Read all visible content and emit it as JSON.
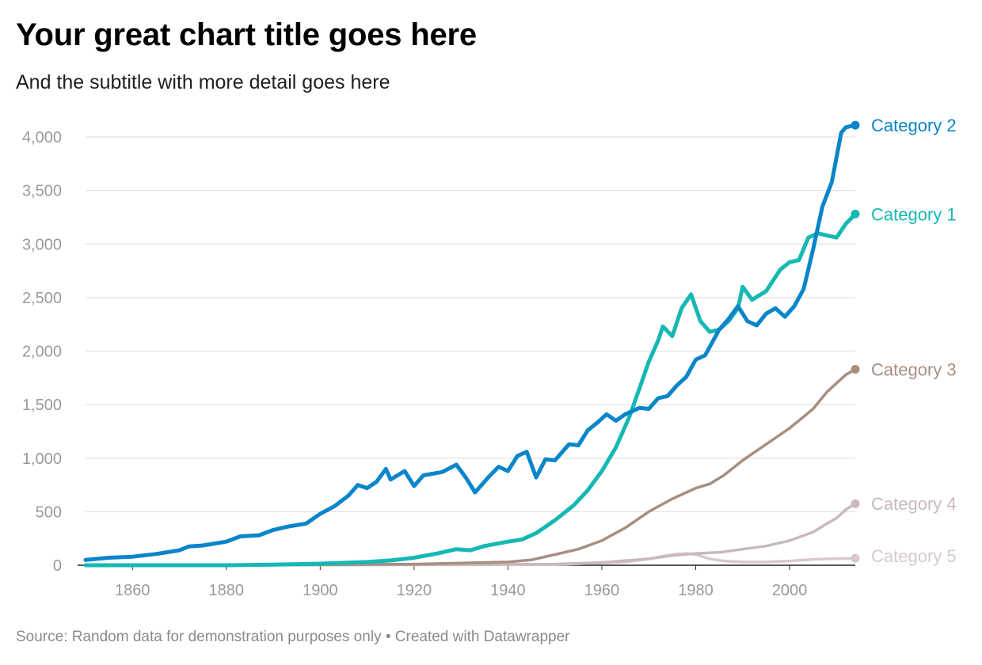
{
  "header": {
    "title": "Your great chart title goes here",
    "subtitle": "And the subtitle with more detail goes here"
  },
  "footer": {
    "source": "Source: Random data for demonstration purposes only",
    "separator": "•",
    "credit": "Created with Datawrapper"
  },
  "chart_data": {
    "type": "line",
    "title": "Your great chart title goes here",
    "subtitle": "And the subtitle with more detail goes here",
    "xlabel": "",
    "ylabel": "",
    "xlim": [
      1850,
      2014
    ],
    "ylim": [
      0,
      4000
    ],
    "x_ticks": [
      1860,
      1880,
      1900,
      1920,
      1940,
      1960,
      1980,
      2000
    ],
    "x_tick_labels": [
      "1860",
      "1880",
      "1900",
      "1920",
      "1940",
      "1960",
      "1980",
      "2000"
    ],
    "y_ticks": [
      0,
      500,
      1000,
      1500,
      2000,
      2500,
      3000,
      3500,
      4000
    ],
    "y_tick_labels": [
      "0",
      "500",
      "1,000",
      "1,500",
      "2,000",
      "2,500",
      "3,000",
      "3,500",
      "4,000"
    ],
    "grid": true,
    "legend": "direct labels at line ends (right)",
    "series": [
      {
        "name": "Category 2",
        "color": "#0a85c9",
        "points": [
          [
            1850,
            50
          ],
          [
            1855,
            70
          ],
          [
            1860,
            80
          ],
          [
            1865,
            105
          ],
          [
            1870,
            140
          ],
          [
            1872,
            175
          ],
          [
            1875,
            185
          ],
          [
            1880,
            220
          ],
          [
            1883,
            270
          ],
          [
            1887,
            280
          ],
          [
            1890,
            330
          ],
          [
            1893,
            360
          ],
          [
            1897,
            390
          ],
          [
            1900,
            480
          ],
          [
            1903,
            550
          ],
          [
            1906,
            650
          ],
          [
            1908,
            750
          ],
          [
            1910,
            720
          ],
          [
            1912,
            780
          ],
          [
            1914,
            900
          ],
          [
            1915,
            800
          ],
          [
            1918,
            880
          ],
          [
            1920,
            740
          ],
          [
            1922,
            840
          ],
          [
            1926,
            870
          ],
          [
            1929,
            940
          ],
          [
            1931,
            820
          ],
          [
            1933,
            680
          ],
          [
            1936,
            830
          ],
          [
            1938,
            920
          ],
          [
            1940,
            880
          ],
          [
            1942,
            1020
          ],
          [
            1944,
            1060
          ],
          [
            1946,
            820
          ],
          [
            1948,
            990
          ],
          [
            1950,
            980
          ],
          [
            1953,
            1130
          ],
          [
            1955,
            1120
          ],
          [
            1957,
            1260
          ],
          [
            1959,
            1330
          ],
          [
            1961,
            1410
          ],
          [
            1963,
            1350
          ],
          [
            1965,
            1410
          ],
          [
            1968,
            1470
          ],
          [
            1970,
            1460
          ],
          [
            1972,
            1560
          ],
          [
            1974,
            1580
          ],
          [
            1976,
            1680
          ],
          [
            1978,
            1760
          ],
          [
            1980,
            1920
          ],
          [
            1982,
            1960
          ],
          [
            1985,
            2200
          ],
          [
            1987,
            2300
          ],
          [
            1989,
            2420
          ],
          [
            1991,
            2280
          ],
          [
            1993,
            2240
          ],
          [
            1995,
            2350
          ],
          [
            1997,
            2400
          ],
          [
            1999,
            2320
          ],
          [
            2001,
            2420
          ],
          [
            2003,
            2580
          ],
          [
            2005,
            2950
          ],
          [
            2007,
            3350
          ],
          [
            2009,
            3580
          ],
          [
            2011,
            4040
          ],
          [
            2012,
            4090
          ],
          [
            2014,
            4110
          ]
        ]
      },
      {
        "name": "Category 1",
        "color": "#15b8b3",
        "points": [
          [
            1850,
            0
          ],
          [
            1880,
            0
          ],
          [
            1890,
            5
          ],
          [
            1900,
            15
          ],
          [
            1910,
            30
          ],
          [
            1915,
            45
          ],
          [
            1920,
            70
          ],
          [
            1925,
            110
          ],
          [
            1929,
            150
          ],
          [
            1932,
            140
          ],
          [
            1935,
            180
          ],
          [
            1940,
            220
          ],
          [
            1943,
            240
          ],
          [
            1946,
            300
          ],
          [
            1950,
            420
          ],
          [
            1954,
            560
          ],
          [
            1957,
            700
          ],
          [
            1960,
            880
          ],
          [
            1963,
            1100
          ],
          [
            1966,
            1400
          ],
          [
            1968,
            1650
          ],
          [
            1970,
            1900
          ],
          [
            1972,
            2100
          ],
          [
            1973,
            2230
          ],
          [
            1975,
            2140
          ],
          [
            1977,
            2400
          ],
          [
            1979,
            2530
          ],
          [
            1981,
            2280
          ],
          [
            1983,
            2180
          ],
          [
            1985,
            2200
          ],
          [
            1987,
            2280
          ],
          [
            1989,
            2400
          ],
          [
            1990,
            2600
          ],
          [
            1992,
            2480
          ],
          [
            1995,
            2560
          ],
          [
            1998,
            2760
          ],
          [
            2000,
            2830
          ],
          [
            2002,
            2850
          ],
          [
            2004,
            3060
          ],
          [
            2006,
            3100
          ],
          [
            2008,
            3080
          ],
          [
            2010,
            3060
          ],
          [
            2012,
            3190
          ],
          [
            2014,
            3280
          ]
        ]
      },
      {
        "name": "Category 3",
        "color": "#a88e82",
        "points": [
          [
            1850,
            0
          ],
          [
            1900,
            5
          ],
          [
            1920,
            10
          ],
          [
            1930,
            20
          ],
          [
            1940,
            30
          ],
          [
            1945,
            50
          ],
          [
            1950,
            100
          ],
          [
            1955,
            150
          ],
          [
            1960,
            230
          ],
          [
            1965,
            350
          ],
          [
            1970,
            500
          ],
          [
            1975,
            620
          ],
          [
            1980,
            720
          ],
          [
            1983,
            760
          ],
          [
            1986,
            840
          ],
          [
            1990,
            980
          ],
          [
            1995,
            1130
          ],
          [
            2000,
            1280
          ],
          [
            2005,
            1460
          ],
          [
            2008,
            1620
          ],
          [
            2010,
            1700
          ],
          [
            2012,
            1780
          ],
          [
            2014,
            1830
          ]
        ]
      },
      {
        "name": "Category 4",
        "color": "#c9b9bc",
        "points": [
          [
            1850,
            0
          ],
          [
            1900,
            2
          ],
          [
            1950,
            10
          ],
          [
            1960,
            25
          ],
          [
            1970,
            60
          ],
          [
            1975,
            90
          ],
          [
            1980,
            110
          ],
          [
            1985,
            120
          ],
          [
            1990,
            150
          ],
          [
            1995,
            180
          ],
          [
            2000,
            230
          ],
          [
            2005,
            310
          ],
          [
            2008,
            390
          ],
          [
            2010,
            440
          ],
          [
            2012,
            520
          ],
          [
            2014,
            575
          ]
        ]
      },
      {
        "name": "Category 5",
        "color": "#d8c9cc",
        "points": [
          [
            1850,
            0
          ],
          [
            1950,
            5
          ],
          [
            1965,
            30
          ],
          [
            1970,
            60
          ],
          [
            1975,
            100
          ],
          [
            1978,
            110
          ],
          [
            1980,
            100
          ],
          [
            1983,
            60
          ],
          [
            1986,
            40
          ],
          [
            1990,
            30
          ],
          [
            1995,
            30
          ],
          [
            2000,
            40
          ],
          [
            2005,
            55
          ],
          [
            2010,
            62
          ],
          [
            2014,
            65
          ]
        ]
      }
    ]
  }
}
